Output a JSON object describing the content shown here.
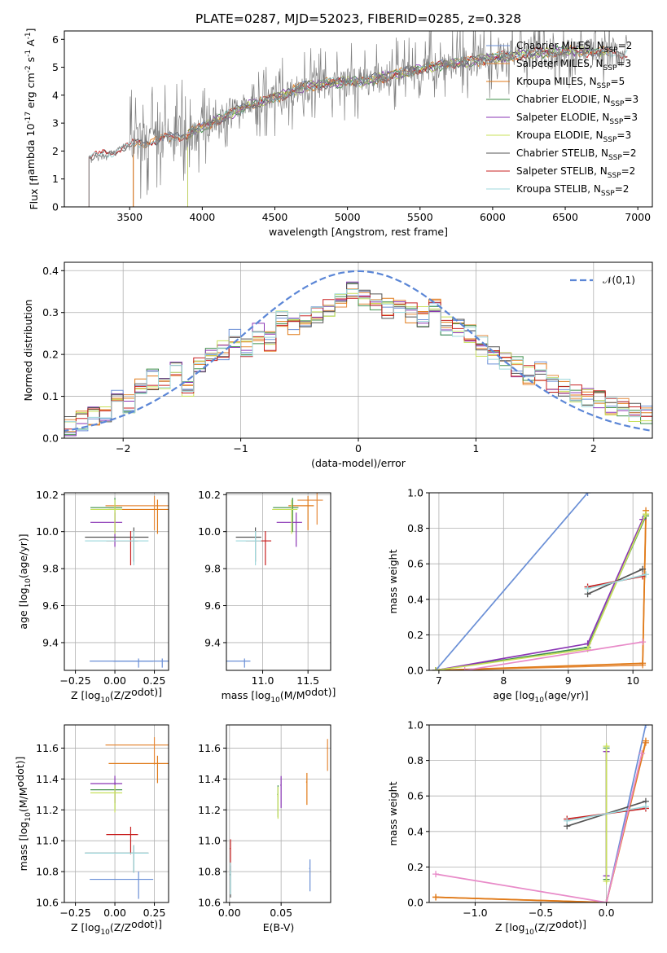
{
  "figure": {
    "title": "PLATE=0287, MJD=52023, FIBERID=0285, z=0.328"
  },
  "palette": {
    "Chabrier MILES": "#6a8fd6",
    "Salpeter MILES": "#e58a3b",
    "Kroupa MILES": "#e07a18",
    "Chabrier ELODIE": "#3f8f4a",
    "Salpeter ELODIE": "#8a35b5",
    "Kroupa ELODIE": "#c8e05a",
    "Chabrier STELIB": "#555555",
    "Salpeter STELIB": "#c82020",
    "Kroupa STELIB": "#9fd8dc",
    "gauss": "#5b86d6",
    "pink": "#e88ac8"
  },
  "chart_data": [
    {
      "id": "spectrum",
      "type": "line",
      "title": "PLATE=0287, MJD=52023, FIBERID=0285, z=0.328",
      "xlabel": "wavelength [Angstrom, rest frame]",
      "ylabel": "Flux [f$_\\lambda$ 10$^{-17}$ erg cm$^{-2}$ s$^{-1}$ A$^{-1}$]",
      "xlim": [
        3050,
        7100
      ],
      "ylim": [
        0,
        6.3
      ],
      "xticks": [
        3500,
        4000,
        4500,
        5000,
        5500,
        6000,
        6500,
        7000
      ],
      "yticks": [
        0,
        1,
        2,
        3,
        4,
        5,
        6
      ],
      "grid": false,
      "legend_position": "top-right",
      "data_trend": {
        "wavelength": [
          3220,
          3350,
          3500,
          3700,
          3900,
          4100,
          4300,
          4500,
          4700,
          4900,
          5100,
          5300,
          5500,
          5700,
          5900,
          6100,
          6300,
          6500,
          6700,
          6900
        ],
        "flux": [
          1.8,
          1.9,
          2.2,
          2.4,
          2.6,
          3.1,
          3.6,
          3.9,
          4.3,
          4.45,
          4.5,
          4.7,
          4.95,
          5.1,
          5.25,
          5.4,
          5.5,
          5.6,
          5.55,
          5.5
        ],
        "color": "#808080",
        "noise_amplitude": "large beyond 3500"
      },
      "series": [
        {
          "name": "Chabrier MILES, N$_{SSP}$=2",
          "start": 3525,
          "end": 6810
        },
        {
          "name": "Salpeter MILES, N$_{SSP}$=3",
          "start": 3525,
          "end": 6810
        },
        {
          "name": "Kroupa MILES, N$_{SSP}$=5",
          "start": 3525,
          "end": 6810
        },
        {
          "name": "Chabrier ELODIE, N$_{SSP}$=3",
          "start": 3900,
          "end": 6800
        },
        {
          "name": "Salpeter ELODIE, N$_{SSP}$=3",
          "start": 3900,
          "end": 6800
        },
        {
          "name": "Kroupa ELODIE, N$_{SSP}$=3",
          "start": 3900,
          "end": 6800
        },
        {
          "name": "Chabrier STELIB, N$_{SSP}$=2",
          "start": 3220,
          "end": 6930
        },
        {
          "name": "Salpeter STELIB, N$_{SSP}$=2",
          "start": 3220,
          "end": 6930
        },
        {
          "name": "Kroupa STELIB, N$_{SSP}$=2",
          "start": 3220,
          "end": 6930
        }
      ]
    },
    {
      "id": "residuals",
      "type": "line",
      "xlabel": "(data-model)/error",
      "ylabel": "Normed distribution",
      "xlim": [
        -2.5,
        2.5
      ],
      "ylim": [
        0,
        0.42
      ],
      "xticks": [
        -2,
        -1,
        0,
        1,
        2
      ],
      "yticks": [
        0.0,
        0.1,
        0.2,
        0.3,
        0.4
      ],
      "grid": true,
      "legend_position": "top-right",
      "gaussian": {
        "name": "$\\mathcal{N}(0,1)$",
        "mu": 0,
        "sigma": 1
      },
      "histogram": {
        "bin_centers": [
          -2.45,
          -2.35,
          -2.25,
          -2.15,
          -2.05,
          -1.95,
          -1.85,
          -1.75,
          -1.65,
          -1.55,
          -1.45,
          -1.35,
          -1.25,
          -1.15,
          -1.05,
          -0.95,
          -0.85,
          -0.75,
          -0.65,
          -0.55,
          -0.45,
          -0.35,
          -0.25,
          -0.15,
          -0.05,
          0.05,
          0.15,
          0.25,
          0.35,
          0.45,
          0.55,
          0.65,
          0.75,
          0.85,
          0.95,
          1.05,
          1.15,
          1.25,
          1.35,
          1.45,
          1.55,
          1.65,
          1.75,
          1.85,
          1.95,
          2.05,
          2.15,
          2.25,
          2.35,
          2.45
        ],
        "values": [
          0.03,
          0.04,
          0.05,
          0.06,
          0.09,
          0.08,
          0.12,
          0.14,
          0.12,
          0.16,
          0.11,
          0.18,
          0.2,
          0.21,
          0.24,
          0.22,
          0.25,
          0.23,
          0.28,
          0.27,
          0.29,
          0.3,
          0.31,
          0.33,
          0.35,
          0.34,
          0.33,
          0.31,
          0.32,
          0.3,
          0.29,
          0.32,
          0.27,
          0.26,
          0.25,
          0.22,
          0.2,
          0.18,
          0.17,
          0.15,
          0.16,
          0.13,
          0.12,
          0.11,
          0.1,
          0.09,
          0.08,
          0.07,
          0.06,
          0.06
        ]
      }
    },
    {
      "id": "age_vs_Z",
      "type": "scatter",
      "xlabel": "Z [$\\log_{10}(Z/Z_\\odot)$]",
      "ylabel": "age  [$\\log_{10}(age/yr)$]",
      "xlim": [
        -0.32,
        0.34
      ],
      "ylim": [
        9.25,
        10.21
      ],
      "xticks": [
        -0.25,
        0.0,
        0.25
      ],
      "yticks": [
        9.4,
        9.6,
        9.8,
        10.0,
        10.2
      ],
      "grid": true,
      "points": [
        {
          "series": "Chabrier MILES",
          "x": 0.15,
          "y": 9.3
        },
        {
          "series": "Chabrier MILES",
          "x": 0.3,
          "y": 9.3
        },
        {
          "series": "Salpeter MILES",
          "x": 0.25,
          "y": 10.14
        },
        {
          "series": "Kroupa MILES",
          "x": 0.27,
          "y": 10.12
        },
        {
          "series": "Chabrier ELODIE",
          "x": 0.0,
          "y": 10.13
        },
        {
          "series": "Salpeter ELODIE",
          "x": 0.0,
          "y": 10.05
        },
        {
          "series": "Kroupa ELODIE",
          "x": 0.0,
          "y": 10.12
        },
        {
          "series": "Chabrier STELIB",
          "x": 0.12,
          "y": 9.97
        },
        {
          "series": "Salpeter STELIB",
          "x": 0.1,
          "y": 9.95
        },
        {
          "series": "Kroupa STELIB",
          "x": 0.12,
          "y": 9.95
        }
      ]
    },
    {
      "id": "age_vs_mass",
      "type": "scatter",
      "xlabel": "mass [$\\log_{10}(M/M_\\odot)$]",
      "ylabel": "",
      "xlim": [
        10.6,
        11.75
      ],
      "ylim": [
        9.25,
        10.21
      ],
      "xticks": [
        11.0,
        11.5
      ],
      "yticks": [
        9.4,
        9.6,
        9.8,
        10.0,
        10.2
      ],
      "grid": true,
      "points": [
        {
          "series": "Chabrier MILES",
          "x": 10.8,
          "y": 9.3
        },
        {
          "series": "Salpeter MILES",
          "x": 11.6,
          "y": 10.17
        },
        {
          "series": "Kroupa MILES",
          "x": 11.5,
          "y": 10.14
        },
        {
          "series": "Chabrier ELODIE",
          "x": 11.33,
          "y": 10.13
        },
        {
          "series": "Salpeter ELODIE",
          "x": 11.37,
          "y": 10.05
        },
        {
          "series": "Kroupa ELODIE",
          "x": 11.32,
          "y": 10.12
        },
        {
          "series": "Chabrier STELIB",
          "x": 10.92,
          "y": 9.97
        },
        {
          "series": "Salpeter STELIB",
          "x": 11.03,
          "y": 9.95
        },
        {
          "series": "Kroupa STELIB",
          "x": 10.92,
          "y": 9.95
        }
      ]
    },
    {
      "id": "weight_vs_age",
      "type": "line",
      "xlabel": "age  [$\\log_{10}(age/yr)$]",
      "ylabel": "mass weight",
      "xlim": [
        6.85,
        10.3
      ],
      "ylim": [
        0,
        1.0
      ],
      "xticks": [
        7,
        8,
        9,
        10
      ],
      "yticks": [
        0.0,
        0.2,
        0.4,
        0.6,
        0.8,
        1.0
      ],
      "grid": true,
      "series": [
        {
          "name": "Chabrier MILES",
          "x": [
            6.95,
            9.3
          ],
          "y": [
            0.0,
            1.0
          ]
        },
        {
          "name": "Salpeter MILES",
          "x": [
            6.95,
            10.15,
            10.2
          ],
          "y": [
            0.0,
            0.03,
            0.88
          ]
        },
        {
          "name": "Kroupa MILES",
          "x": [
            6.95,
            10.15,
            10.2
          ],
          "y": [
            0.0,
            0.04,
            0.9
          ]
        },
        {
          "name": "Chabrier ELODIE",
          "x": [
            6.95,
            9.3,
            10.2
          ],
          "y": [
            0.0,
            0.13,
            0.87
          ]
        },
        {
          "name": "Salpeter ELODIE",
          "x": [
            6.95,
            9.3,
            10.15
          ],
          "y": [
            0.0,
            0.15,
            0.85
          ]
        },
        {
          "name": "Kroupa ELODIE",
          "x": [
            6.95,
            9.3,
            10.2
          ],
          "y": [
            0.0,
            0.12,
            0.88
          ]
        },
        {
          "name": "Chabrier STELIB",
          "x": [
            9.3,
            10.15
          ],
          "y": [
            0.43,
            0.57
          ]
        },
        {
          "name": "Salpeter STELIB",
          "x": [
            9.3,
            10.15
          ],
          "y": [
            0.47,
            0.53
          ]
        },
        {
          "name": "Kroupa STELIB",
          "x": [
            9.3,
            10.2
          ],
          "y": [
            0.46,
            0.54
          ]
        },
        {
          "name": "pink",
          "x": [
            7.4,
            10.15
          ],
          "y": [
            0.0,
            0.16
          ]
        }
      ]
    },
    {
      "id": "mass_vs_Z",
      "type": "scatter",
      "xlabel": "Z [$\\log_{10}(Z/Z_\\odot)$]",
      "ylabel": "mass [$\\log_{10}(M/M_\\odot)$]",
      "xlim": [
        -0.32,
        0.34
      ],
      "ylim": [
        10.6,
        11.75
      ],
      "xticks": [
        -0.25,
        0.0,
        0.25
      ],
      "yticks": [
        10.6,
        10.8,
        11.0,
        11.2,
        11.4,
        11.6
      ],
      "grid": true,
      "points": [
        {
          "series": "Chabrier MILES",
          "x": 0.15,
          "y": 10.75
        },
        {
          "series": "Salpeter MILES",
          "x": 0.25,
          "y": 11.62
        },
        {
          "series": "Kroupa MILES",
          "x": 0.27,
          "y": 11.5
        },
        {
          "series": "Chabrier ELODIE",
          "x": 0.0,
          "y": 11.33
        },
        {
          "series": "Salpeter ELODIE",
          "x": 0.0,
          "y": 11.37
        },
        {
          "series": "Kroupa ELODIE",
          "x": 0.0,
          "y": 11.31
        },
        {
          "series": "Chabrier STELIB",
          "x": 0.12,
          "y": 10.92
        },
        {
          "series": "Salpeter STELIB",
          "x": 0.1,
          "y": 11.04
        },
        {
          "series": "Kroupa STELIB",
          "x": 0.12,
          "y": 10.92
        }
      ]
    },
    {
      "id": "mass_vs_ebv",
      "type": "scatter",
      "xlabel": "E(B-V)",
      "ylabel": "",
      "xlim": [
        -0.003,
        0.098
      ],
      "ylim": [
        10.6,
        11.75
      ],
      "xticks": [
        0.0,
        0.05
      ],
      "yticks": [
        10.6,
        10.8,
        11.0,
        11.2,
        11.4,
        11.6
      ],
      "grid": true,
      "points": [
        {
          "series": "Chabrier MILES",
          "x": 0.078,
          "y": 10.82
        },
        {
          "series": "Salpeter MILES",
          "x": 0.095,
          "y": 11.6
        },
        {
          "series": "Kroupa MILES",
          "x": 0.075,
          "y": 11.38
        },
        {
          "series": "Chabrier ELODIE",
          "x": 0.047,
          "y": 11.3
        },
        {
          "series": "Salpeter ELODIE",
          "x": 0.05,
          "y": 11.36
        },
        {
          "series": "Kroupa ELODIE",
          "x": 0.047,
          "y": 11.29
        },
        {
          "series": "Chabrier STELIB",
          "x": 0.001,
          "y": 10.78
        },
        {
          "series": "Salpeter STELIB",
          "x": 0.001,
          "y": 10.95
        },
        {
          "series": "Kroupa STELIB",
          "x": 0.001,
          "y": 10.8
        }
      ]
    },
    {
      "id": "weight_vs_Z",
      "type": "line",
      "xlabel": "Z [$\\log_{10}(Z/Z_\\odot)$]",
      "ylabel": "mass weight",
      "xlim": [
        -1.35,
        0.35
      ],
      "ylim": [
        0,
        1.0
      ],
      "xticks": [
        -1.0,
        -0.5,
        0.0
      ],
      "yticks": [
        0.0,
        0.2,
        0.4,
        0.6,
        0.8,
        1.0
      ],
      "grid": true,
      "series": [
        {
          "name": "Chabrier MILES",
          "x": [
            0.0,
            0.3
          ],
          "y": [
            0.0,
            1.0
          ]
        },
        {
          "name": "Salpeter MILES",
          "x": [
            -1.3,
            0.0,
            0.3
          ],
          "y": [
            0.03,
            0.0,
            0.9
          ]
        },
        {
          "name": "Kroupa MILES",
          "x": [
            -1.3,
            0.0,
            0.3
          ],
          "y": [
            0.03,
            0.0,
            0.91
          ]
        },
        {
          "name": "Chabrier ELODIE",
          "x": [
            0.0,
            0.0
          ],
          "y": [
            0.13,
            0.87
          ]
        },
        {
          "name": "Salpeter ELODIE",
          "x": [
            0.0,
            0.0
          ],
          "y": [
            0.15,
            0.85
          ]
        },
        {
          "name": "Kroupa ELODIE",
          "x": [
            0.0,
            0.0
          ],
          "y": [
            0.12,
            0.88
          ]
        },
        {
          "name": "Chabrier STELIB",
          "x": [
            -0.3,
            0.3
          ],
          "y": [
            0.43,
            0.57
          ]
        },
        {
          "name": "Salpeter STELIB",
          "x": [
            -0.3,
            0.3
          ],
          "y": [
            0.47,
            0.53
          ]
        },
        {
          "name": "Kroupa STELIB",
          "x": [
            -0.3,
            0.3
          ],
          "y": [
            0.46,
            0.54
          ]
        },
        {
          "name": "pink",
          "x": [
            -1.3,
            0.0,
            0.27
          ],
          "y": [
            0.16,
            0.0,
            0.84
          ]
        }
      ]
    }
  ]
}
